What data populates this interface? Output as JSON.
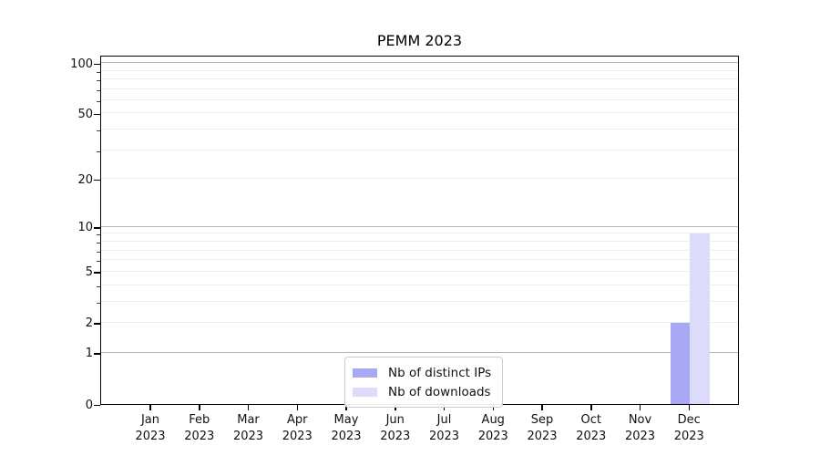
{
  "figure": {
    "title": "PEMM 2023"
  },
  "chart_data": {
    "type": "bar",
    "title": "PEMM 2023",
    "scale": "log1p",
    "ylim": [
      0,
      112
    ],
    "xlabel": "",
    "ylabel": "",
    "categories": [
      "Jan 2023",
      "Feb 2023",
      "Mar 2023",
      "Apr 2023",
      "May 2023",
      "Jun 2023",
      "Jul 2023",
      "Aug 2023",
      "Sep 2023",
      "Oct 2023",
      "Nov 2023",
      "Dec 2023"
    ],
    "series": [
      {
        "name": "Nb of distinct IPs",
        "color": "#a8a8f5",
        "values": [
          0,
          0,
          0,
          0,
          0,
          0,
          0,
          0,
          0,
          0,
          0,
          2
        ]
      },
      {
        "name": "Nb of downloads",
        "color": "#dcdcfa",
        "values": [
          0,
          0,
          0,
          0,
          0,
          0,
          0,
          0,
          0,
          0,
          0,
          9
        ]
      }
    ],
    "yticks": [
      100,
      50,
      20,
      10,
      5,
      2,
      1,
      0
    ],
    "grid": {
      "major_values": [
        1,
        10,
        100
      ],
      "minor_values": [
        2,
        3,
        4,
        5,
        6,
        7,
        8,
        9,
        20,
        30,
        40,
        50,
        60,
        70,
        80,
        90
      ],
      "major_color": "#b5b5b5",
      "minor_color": "#ededed"
    },
    "legend": {
      "position": "bottom-center",
      "entries": [
        "Nb of distinct IPs",
        "Nb of downloads"
      ]
    }
  }
}
